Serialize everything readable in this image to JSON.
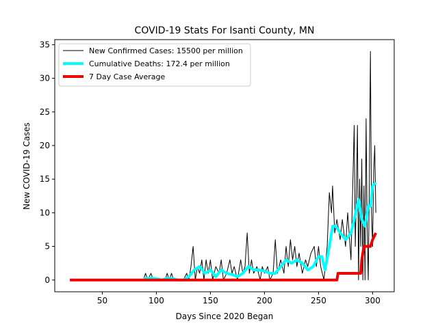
{
  "chart_data": {
    "type": "line",
    "title": "COVID-19 Stats For Isanti County, MN",
    "x_label": "Days Since 2020 Began",
    "y_label": "New COVID-19 Cases",
    "xlim": [
      6,
      320
    ],
    "ylim": [
      -1.75,
      35.75
    ],
    "xticks": [
      50,
      100,
      150,
      200,
      250,
      300
    ],
    "yticks": [
      0,
      5,
      10,
      15,
      20,
      25,
      30,
      35
    ],
    "legend": "upper left",
    "series": [
      {
        "name": "New Confirmed Cases: 15500 per million",
        "color": "#000000",
        "x": [
          88,
          90,
          92,
          95,
          97,
          100,
          108,
          110,
          112,
          114,
          116,
          125,
          128,
          130,
          132,
          134,
          136,
          138,
          140,
          142,
          144,
          146,
          148,
          150,
          152,
          155,
          158,
          160,
          162,
          165,
          168,
          170,
          172,
          175,
          178,
          180,
          182,
          184,
          186,
          188,
          190,
          193,
          196,
          198,
          200,
          203,
          205,
          208,
          210,
          212,
          215,
          218,
          220,
          222,
          224,
          226,
          228,
          230,
          232,
          235,
          238,
          240,
          243,
          246,
          248,
          250,
          252,
          255,
          258,
          260,
          262,
          263,
          265,
          267,
          270,
          272,
          275,
          277,
          280,
          283,
          284,
          285,
          286,
          287,
          288,
          289,
          290,
          291,
          292,
          293,
          294,
          295,
          296,
          297,
          298,
          299,
          300,
          301,
          302,
          303
        ],
        "values": [
          0,
          1,
          0,
          1,
          0,
          0,
          0,
          1,
          0,
          1,
          0,
          0,
          1,
          0,
          2,
          5,
          0,
          2,
          1,
          3,
          0,
          3,
          1,
          3,
          0,
          2,
          1,
          3,
          0,
          1,
          3,
          1,
          2,
          0,
          3,
          1,
          2,
          7,
          1,
          3,
          1,
          2,
          0,
          2,
          1,
          2,
          0,
          1,
          6,
          1,
          3,
          1,
          5,
          2,
          6,
          3,
          5,
          2,
          4,
          1,
          3,
          2,
          4,
          5,
          2,
          5,
          2,
          0,
          5,
          13,
          10,
          14,
          7,
          9,
          6,
          9,
          5,
          10,
          3,
          23,
          5,
          13,
          23,
          0,
          15,
          5,
          18,
          0,
          14,
          0,
          24,
          8,
          0,
          15,
          34,
          10,
          5,
          16,
          20,
          10
        ]
      },
      {
        "name": "Cumulative Deaths: 172.4 per million",
        "color": "#00ffff",
        "x": [
          88,
          95,
          100,
          105,
          110,
          115,
          120,
          125,
          130,
          135,
          140,
          145,
          150,
          155,
          160,
          165,
          170,
          175,
          180,
          185,
          190,
          195,
          200,
          205,
          210,
          215,
          220,
          225,
          230,
          235,
          240,
          245,
          250,
          253,
          256,
          260,
          263,
          266,
          270,
          275,
          280,
          283,
          287,
          290,
          293,
          296,
          298,
          300,
          303
        ],
        "values": [
          0.2,
          0.3,
          0.2,
          0,
          0.3,
          0.2,
          0,
          0,
          0.5,
          1.5,
          2,
          1,
          1.5,
          0.5,
          1.5,
          1,
          0.8,
          0.5,
          1,
          2,
          1.5,
          1.5,
          1.3,
          1,
          1,
          2,
          3,
          2.5,
          3,
          2.5,
          1.5,
          2,
          3.5,
          3.5,
          1.5,
          5,
          8,
          8,
          7,
          6,
          7,
          9,
          12,
          9,
          8,
          11,
          11,
          14,
          14.5
        ]
      },
      {
        "name": "7 Day Case Average",
        "color": "#ee0000",
        "x": [
          20,
          267,
          268,
          289,
          290,
          292,
          298,
          300,
          303
        ],
        "values": [
          0,
          0,
          1,
          1,
          3,
          5,
          5,
          6,
          7
        ]
      }
    ]
  }
}
